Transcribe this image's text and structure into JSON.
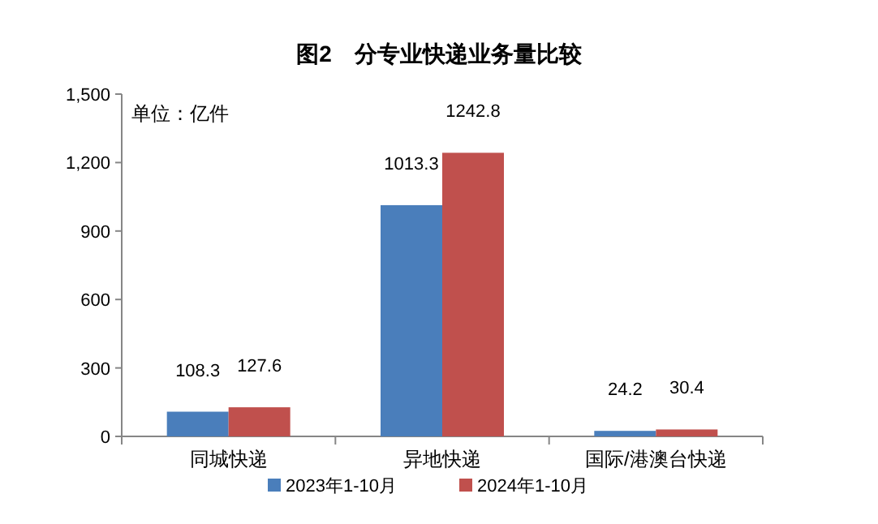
{
  "chart_data": {
    "type": "bar",
    "title": "图2　分专业快递业务量比较",
    "annotations": [
      "单位：亿件"
    ],
    "categories": [
      "同城快递",
      "异地快递",
      "国际/港澳台快递"
    ],
    "series": [
      {
        "name": "2023年1-10月",
        "color": "#4a7ebb",
        "values": [
          108.3,
          1013.3,
          24.2
        ]
      },
      {
        "name": "2024年1-10月",
        "color": "#c0504d",
        "values": [
          127.6,
          1242.8,
          30.4
        ]
      }
    ],
    "ylim": [
      0,
      1500
    ],
    "yticks": [
      0,
      300,
      600,
      900,
      {
        "value": 1200,
        "label": "1,200"
      },
      {
        "value": 1500,
        "label": "1,500"
      }
    ],
    "data_labels": true,
    "legend": "bottom",
    "grid": false
  }
}
